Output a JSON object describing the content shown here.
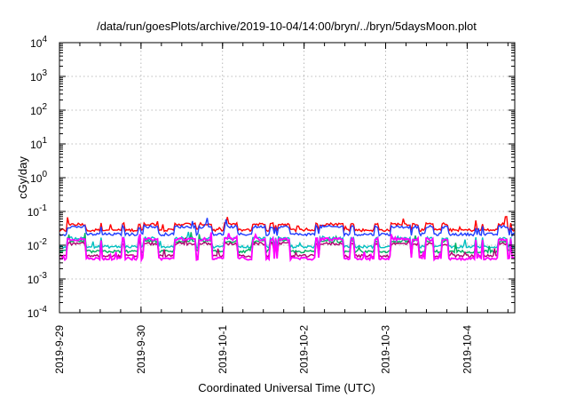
{
  "chart_data": {
    "type": "line",
    "title": "/data/run/goesPlots/archive/2019-10-04/14:00/bryn/../bryn/5daysMoon.plot",
    "xlabel": "Coordinated Universal Time (UTC)",
    "ylabel": "cGy/day",
    "yscale": "log",
    "ylim": [
      0.0001,
      10000
    ],
    "xlim": [
      "2019-09-29T00:00",
      "2019-10-04T14:00"
    ],
    "grid": true,
    "legend": "none",
    "xticks": [
      "2019-9-29",
      "2019-9-30",
      "2019-10-1",
      "2019-10-2",
      "2019-10-3",
      "2019-10-4"
    ],
    "yticks": [
      {
        "base": "10",
        "exp": "-4"
      },
      {
        "base": "10",
        "exp": "-3"
      },
      {
        "base": "10",
        "exp": "-2"
      },
      {
        "base": "10",
        "exp": "-1"
      },
      {
        "base": "10",
        "exp": "0"
      },
      {
        "base": "10",
        "exp": "1"
      },
      {
        "base": "10",
        "exp": "2"
      },
      {
        "base": "10",
        "exp": "3"
      },
      {
        "base": "10",
        "exp": "4"
      }
    ],
    "series": [
      {
        "color": "#ff0000",
        "low": 0.028,
        "high": 0.042
      },
      {
        "color": "#1f3cff",
        "low": 0.021,
        "high": 0.035
      },
      {
        "color": "#00c0c0",
        "low": 0.009,
        "high": 0.016
      },
      {
        "color": "#00b060",
        "low": 0.0065,
        "high": 0.013
      },
      {
        "color": "#b00070",
        "low": 0.0048,
        "high": 0.011
      },
      {
        "color": "#ff00ff",
        "low": 0.004,
        "high": 0.015
      }
    ]
  }
}
